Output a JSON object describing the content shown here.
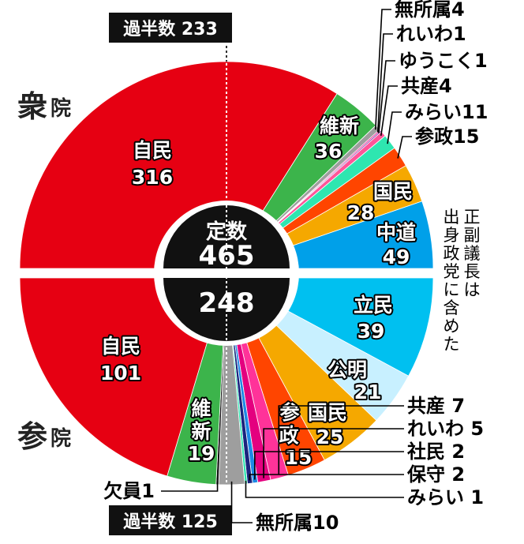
{
  "chart_data": [
    {
      "type": "pie",
      "house": "衆院",
      "total_label": "定数",
      "total": 465,
      "majority_label": "過半数",
      "majority": 233,
      "note": "正副議長は出身政党に含めた",
      "series": [
        {
          "party": "自民",
          "seats": 316,
          "color": "#e60012"
        },
        {
          "party": "維新",
          "seats": 36,
          "color": "#3cb44b"
        },
        {
          "party": "無所属",
          "seats": 4,
          "color": "#9e9e9e"
        },
        {
          "party": "れいわ",
          "seats": 1,
          "color": "#e4007f"
        },
        {
          "party": "ゆうこく",
          "seats": 1,
          "color": "#7b1fa2"
        },
        {
          "party": "共産",
          "seats": 4,
          "color": "#ff5599"
        },
        {
          "party": "みらい",
          "seats": 11,
          "color": "#2ee6b0"
        },
        {
          "party": "参政",
          "seats": 15,
          "color": "#ff4500"
        },
        {
          "party": "国民",
          "seats": 28,
          "color": "#f5a800"
        },
        {
          "party": "中道",
          "seats": 49,
          "color": "#00a0e9"
        }
      ]
    },
    {
      "type": "pie",
      "house": "参院",
      "total": 248,
      "majority_label": "過半数",
      "majority": 125,
      "series": [
        {
          "party": "立民",
          "seats": 39,
          "color": "#00c0f0"
        },
        {
          "party": "公明",
          "seats": 21,
          "color": "#c8f0ff"
        },
        {
          "party": "国民",
          "seats": 25,
          "color": "#f5a800"
        },
        {
          "party": "参政",
          "seats": 15,
          "color": "#ff4500"
        },
        {
          "party": "共産",
          "seats": 7,
          "color": "#ff3399"
        },
        {
          "party": "れいわ",
          "seats": 5,
          "color": "#e4007f"
        },
        {
          "party": "社民",
          "seats": 2,
          "color": "#1e88e5"
        },
        {
          "party": "保守",
          "seats": 2,
          "color": "#1a237e"
        },
        {
          "party": "みらい",
          "seats": 1,
          "color": "#2ee6b0"
        },
        {
          "party": "無所属",
          "seats": 10,
          "color": "#9e9e9e"
        },
        {
          "party": "欠員",
          "seats": 1,
          "color": "#111111"
        },
        {
          "party": "維新",
          "seats": 19,
          "color": "#3cb44b"
        },
        {
          "party": "自民",
          "seats": 101,
          "color": "#e60012"
        }
      ]
    }
  ]
}
